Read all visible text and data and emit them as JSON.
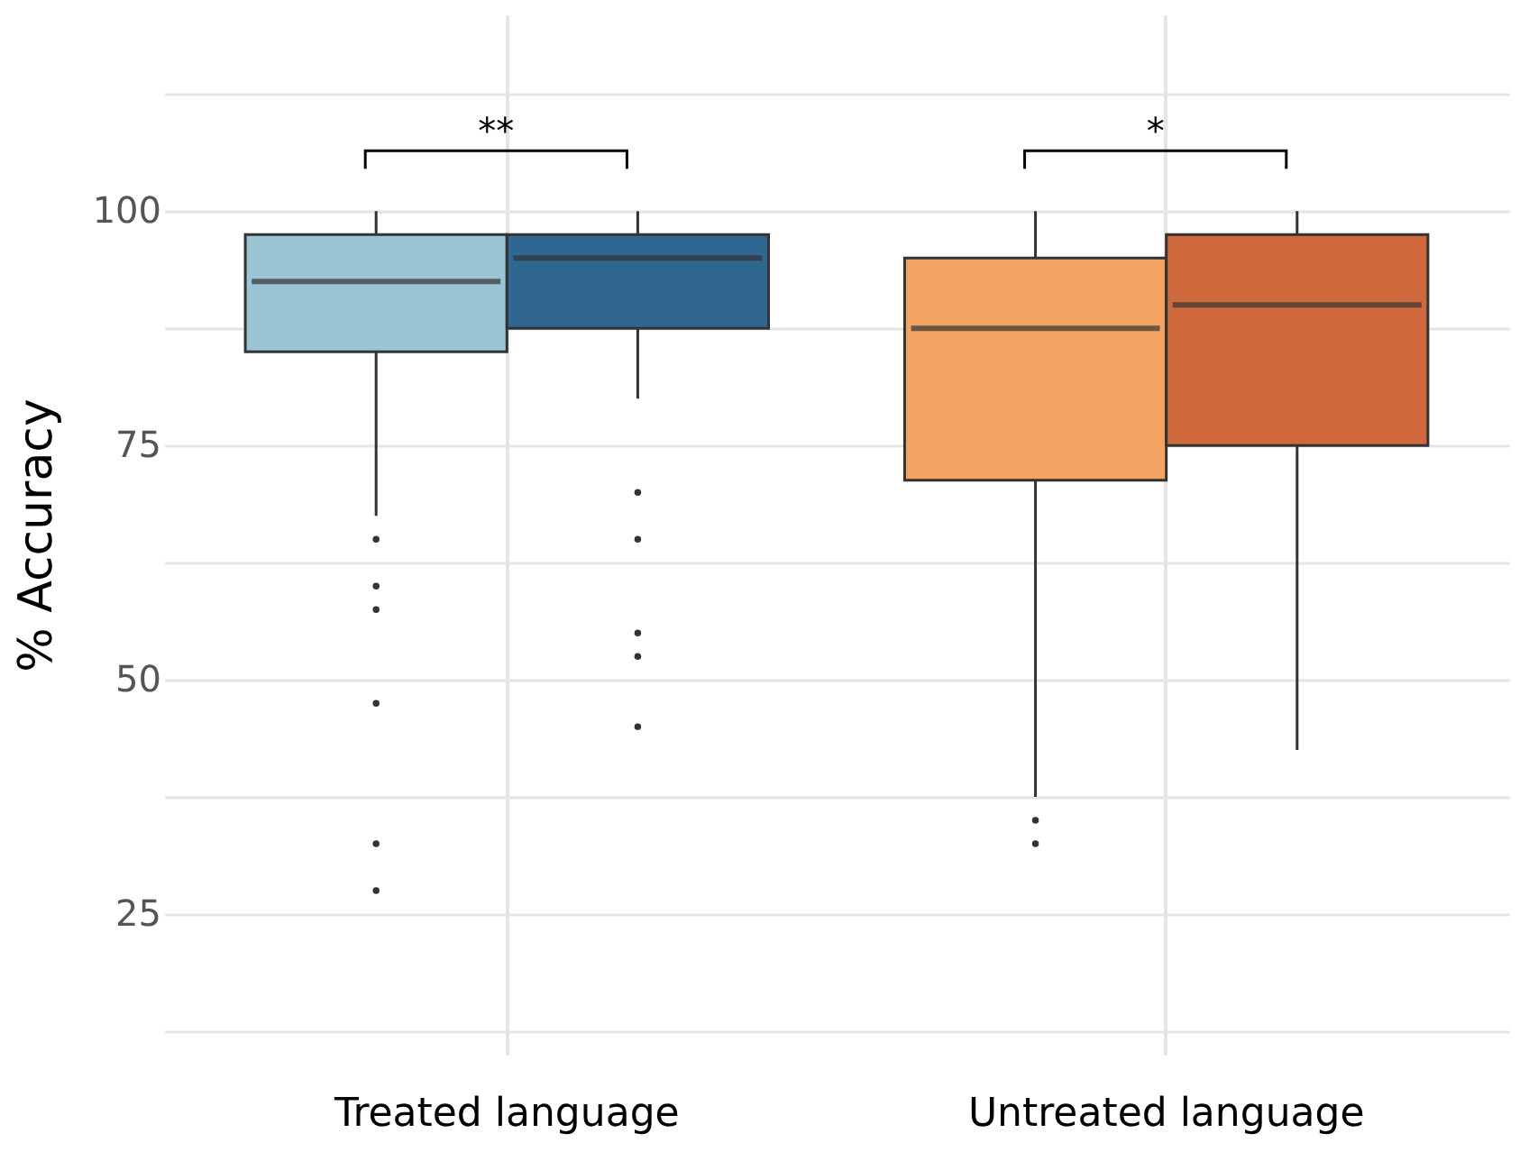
{
  "chart_data": {
    "type": "box",
    "ylabel": "% Accuracy",
    "categories": [
      "Treated language",
      "Untreated language"
    ],
    "series": [
      {
        "colors": [
          "#9bc4d4",
          "#f4a462"
        ],
        "boxes": [
          {
            "low": 67.5,
            "q1": 85,
            "median": 92.5,
            "q3": 97.5,
            "high": 100,
            "outliers": [
              65,
              60,
              57.5,
              47.5,
              32.5,
              27.5
            ]
          },
          {
            "low": 37.5,
            "q1": 71.3,
            "median": 87.5,
            "q3": 95,
            "high": 100,
            "outliers": [
              35,
              32.5
            ]
          }
        ]
      },
      {
        "colors": [
          "#2f6791",
          "#cf693b"
        ],
        "boxes": [
          {
            "low": 80,
            "q1": 87.5,
            "median": 95,
            "q3": 97.5,
            "high": 100,
            "outliers": [
              70,
              65,
              55,
              52.5,
              45
            ]
          },
          {
            "low": 42.5,
            "q1": 75,
            "median": 90,
            "q3": 97.5,
            "high": 100
          }
        ]
      }
    ],
    "ylim": [
      10,
      121
    ],
    "yticks": [
      {
        "value": 12.5,
        "label": null
      },
      25,
      {
        "value": 37.5,
        "label": null
      },
      50,
      {
        "value": 62.5,
        "label": null
      },
      75,
      {
        "value": 87.5,
        "label": null
      },
      100,
      {
        "value": 112.5,
        "label": null
      }
    ],
    "grid": true,
    "annotations": [
      "**",
      "*"
    ]
  }
}
